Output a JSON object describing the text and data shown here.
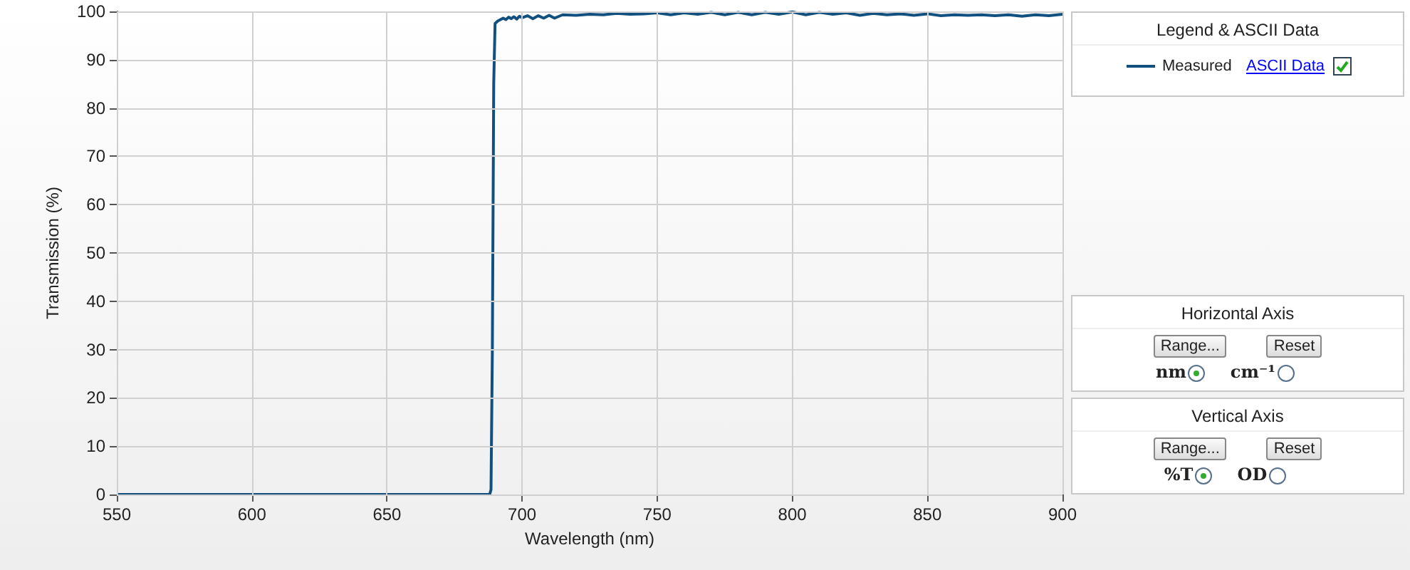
{
  "chart_data": {
    "type": "line",
    "xlabel": "Wavelength (nm)",
    "ylabel": "Transmission (%)",
    "xlim": [
      550,
      900
    ],
    "xticks": [
      550,
      600,
      650,
      700,
      750,
      800,
      850,
      900
    ],
    "ylim": [
      0,
      100
    ],
    "yticks": [
      0,
      10,
      20,
      30,
      40,
      50,
      60,
      70,
      80,
      90,
      100
    ],
    "grid": true,
    "legend": "top right",
    "marker": "none",
    "line_style": "solid",
    "series": [
      {
        "name": "Measured",
        "color": "#12507f",
        "x": [
          550,
          688,
          688.5,
          689,
          689.5,
          690,
          691,
          692,
          693,
          694,
          695,
          696,
          697,
          698,
          699,
          700,
          702,
          704,
          706,
          708,
          710,
          712,
          715,
          720,
          725,
          730,
          735,
          740,
          745,
          750,
          755,
          760,
          765,
          770,
          775,
          780,
          785,
          790,
          795,
          800,
          805,
          810,
          815,
          820,
          825,
          830,
          835,
          840,
          845,
          850,
          855,
          860,
          865,
          870,
          875,
          880,
          885,
          890,
          895,
          900
        ],
        "values": [
          0,
          0,
          1,
          30,
          85,
          97.5,
          98,
          98.3,
          98.6,
          98.3,
          98.8,
          98.5,
          98.9,
          98.4,
          99,
          98.7,
          99.1,
          98.5,
          99.1,
          98.6,
          99.2,
          98.6,
          99.3,
          99.2,
          99.4,
          99.3,
          99.6,
          99.4,
          99.5,
          99.7,
          99.3,
          99.7,
          99.4,
          99.8,
          99.3,
          99.8,
          99.3,
          99.8,
          99.4,
          99.9,
          99.3,
          99.8,
          99.4,
          99.7,
          99.2,
          99.6,
          99.3,
          99.5,
          99.2,
          99.5,
          99.1,
          99.3,
          99.2,
          99.3,
          99.1,
          99.3,
          99.0,
          99.3,
          99.1,
          99.4
        ]
      }
    ],
    "annotations": [
      "Legend & ASCII Data",
      "ASCII Data",
      "Horizontal Axis",
      "Range...",
      "Reset",
      "nm",
      "cm⁻¹",
      "Vertical Axis",
      "Range...",
      "Reset",
      "%T",
      "OD"
    ]
  }
}
